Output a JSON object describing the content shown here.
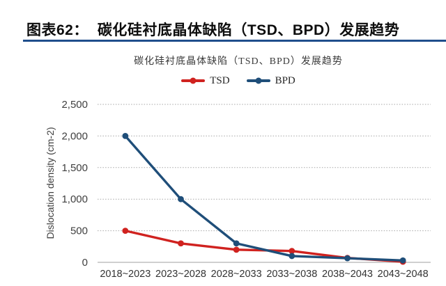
{
  "header": {
    "label": "图表62：",
    "title": "碳化硅衬底晶体缺陷（TSD、BPD）发展趋势"
  },
  "colors": {
    "header_text": "#0d0d0d",
    "header_rule": "#1f4e8c",
    "tsd_red": "#d0221f",
    "bpd_blue": "#1f4e79",
    "gridline": "#a6a6a6",
    "axis_line": "#bfbfbf",
    "tick_text": "#404040",
    "chart_title_text": "#3a3a3a",
    "legend_text": "#262626",
    "background": "#ffffff"
  },
  "chart_data": {
    "type": "line",
    "title": "碳化硅衬底晶体缺陷（TSD、BPD）发展趋势",
    "xlabel": "",
    "ylabel": "Dislocation density (cm-2)",
    "categories": [
      "2018~2023",
      "2023~2028",
      "2028~2033",
      "2033~2038",
      "2038~2043",
      "2043~2048"
    ],
    "series": [
      {
        "name": "TSD",
        "color": "#d0221f",
        "values": [
          500,
          300,
          200,
          180,
          70,
          10
        ]
      },
      {
        "name": "BPD",
        "color": "#1f4e79",
        "values": [
          2000,
          1000,
          300,
          100,
          65,
          30
        ]
      }
    ],
    "ylim": [
      0,
      2500
    ],
    "yticks": [
      {
        "value": 0,
        "label": "0"
      },
      {
        "value": 500,
        "label": "500"
      },
      {
        "value": 1000,
        "label": "1,000"
      },
      {
        "value": 1500,
        "label": "1,500"
      },
      {
        "value": 2000,
        "label": "2,000"
      },
      {
        "value": 2500,
        "label": "2,500"
      }
    ],
    "legend_position": "top-center",
    "grid": "horizontal-dotted",
    "marker": "circle"
  }
}
